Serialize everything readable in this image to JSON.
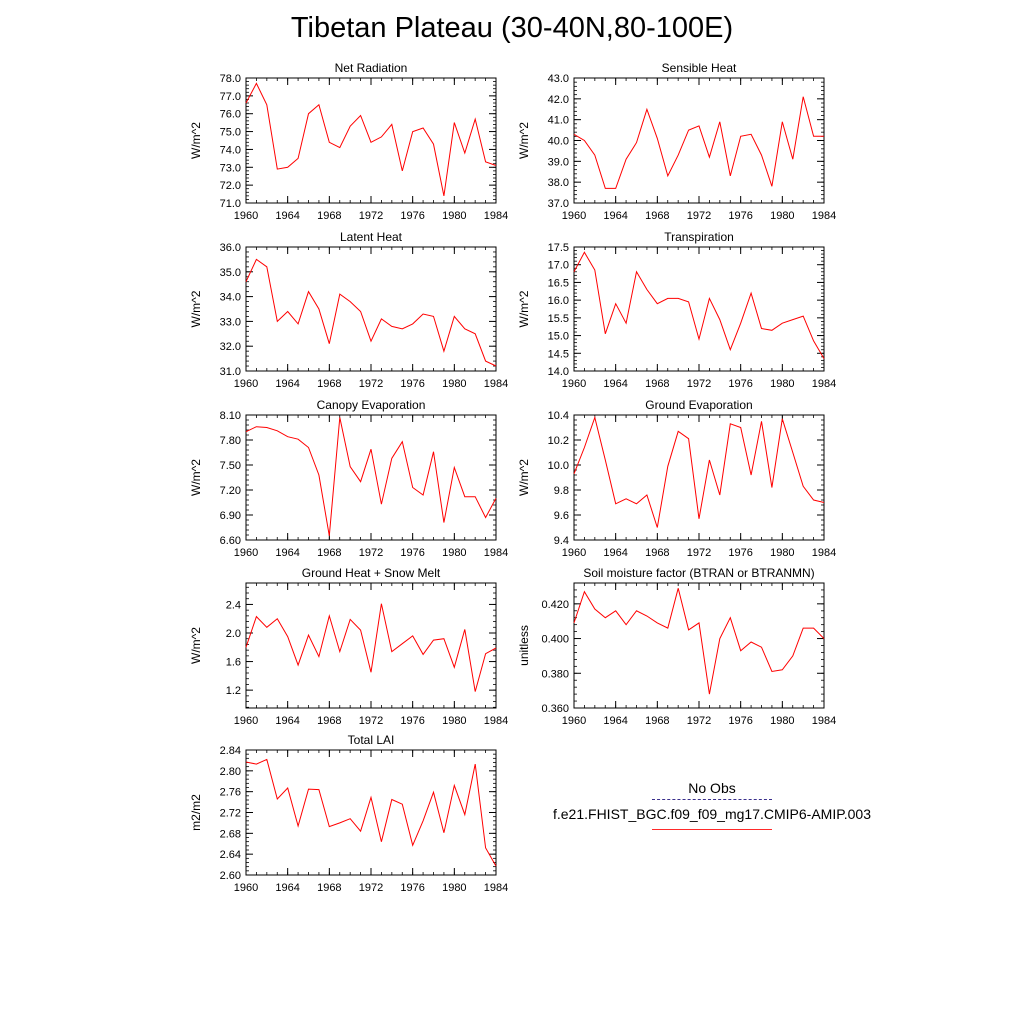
{
  "title": "Tibetan Plateau (30-40N,80-100E)",
  "legend": {
    "obs_label": "No Obs",
    "obs_color": "#3a2e8c",
    "model_label": "f.e21.FHIST_BGC.f09_f09_mg17.CMIP6-AMIP.003",
    "model_color": "#ff0000"
  },
  "chart_data": [
    {
      "type": "line",
      "title": "Net Radiation",
      "ylabel": "W/m^2",
      "xlim": [
        1960,
        1984
      ],
      "ylim": [
        71.0,
        78.0
      ],
      "xticks": [
        1960,
        1964,
        1968,
        1972,
        1976,
        1980,
        1984
      ],
      "yticks": [
        "71.0",
        "72.0",
        "73.0",
        "74.0",
        "75.0",
        "76.0",
        "77.0",
        "78.0"
      ],
      "x": [
        1960,
        1961,
        1962,
        1963,
        1964,
        1965,
        1966,
        1967,
        1968,
        1969,
        1970,
        1971,
        1972,
        1973,
        1974,
        1975,
        1976,
        1977,
        1978,
        1979,
        1980,
        1981,
        1982,
        1983,
        1984
      ],
      "series": [
        {
          "values": [
            76.6,
            77.7,
            76.5,
            72.9,
            73.0,
            73.5,
            76.0,
            76.5,
            74.4,
            74.1,
            75.3,
            75.9,
            74.4,
            74.7,
            75.4,
            72.8,
            75.0,
            75.2,
            74.3,
            71.4,
            75.5,
            73.8,
            75.7,
            73.3,
            73.1
          ]
        }
      ]
    },
    {
      "type": "line",
      "title": "Sensible Heat",
      "ylabel": "W/m^2",
      "xlim": [
        1960,
        1984
      ],
      "ylim": [
        37.0,
        43.0
      ],
      "xticks": [
        1960,
        1964,
        1968,
        1972,
        1976,
        1980,
        1984
      ],
      "yticks": [
        "37.0",
        "38.0",
        "39.0",
        "40.0",
        "41.0",
        "42.0",
        "43.0"
      ],
      "x": [
        1960,
        1961,
        1962,
        1963,
        1964,
        1965,
        1966,
        1967,
        1968,
        1969,
        1970,
        1971,
        1972,
        1973,
        1974,
        1975,
        1976,
        1977,
        1978,
        1979,
        1980,
        1981,
        1982,
        1983,
        1984
      ],
      "series": [
        {
          "values": [
            40.3,
            40.0,
            39.3,
            37.7,
            37.7,
            39.1,
            39.9,
            41.5,
            40.1,
            38.3,
            39.3,
            40.5,
            40.7,
            39.2,
            40.9,
            38.3,
            40.2,
            40.3,
            39.3,
            37.8,
            40.9,
            39.1,
            42.1,
            40.2,
            40.2
          ]
        }
      ]
    },
    {
      "type": "line",
      "title": "Latent Heat",
      "ylabel": "W/m^2",
      "xlim": [
        1960,
        1984
      ],
      "ylim": [
        31.0,
        36.0
      ],
      "xticks": [
        1960,
        1964,
        1968,
        1972,
        1976,
        1980,
        1984
      ],
      "yticks": [
        "31.0",
        "32.0",
        "33.0",
        "34.0",
        "35.0",
        "36.0"
      ],
      "x": [
        1960,
        1961,
        1962,
        1963,
        1964,
        1965,
        1966,
        1967,
        1968,
        1969,
        1970,
        1971,
        1972,
        1973,
        1974,
        1975,
        1976,
        1977,
        1978,
        1979,
        1980,
        1981,
        1982,
        1983,
        1984
      ],
      "series": [
        {
          "values": [
            34.6,
            35.5,
            35.2,
            33.0,
            33.4,
            32.9,
            34.2,
            33.5,
            32.1,
            34.1,
            33.8,
            33.4,
            32.2,
            33.1,
            32.8,
            32.7,
            32.9,
            33.3,
            33.2,
            31.8,
            33.2,
            32.7,
            32.5,
            31.4,
            31.2
          ]
        }
      ]
    },
    {
      "type": "line",
      "title": "Transpiration",
      "ylabel": "W/m^2",
      "xlim": [
        1960,
        1984
      ],
      "ylim": [
        14.0,
        17.5
      ],
      "xticks": [
        1960,
        1964,
        1968,
        1972,
        1976,
        1980,
        1984
      ],
      "yticks": [
        "14.0",
        "14.5",
        "15.0",
        "15.5",
        "16.0",
        "16.5",
        "17.0",
        "17.5"
      ],
      "x": [
        1960,
        1961,
        1962,
        1963,
        1964,
        1965,
        1966,
        1967,
        1968,
        1969,
        1970,
        1971,
        1972,
        1973,
        1974,
        1975,
        1976,
        1977,
        1978,
        1979,
        1980,
        1981,
        1982,
        1983,
        1984
      ],
      "series": [
        {
          "values": [
            16.8,
            17.35,
            16.85,
            15.05,
            15.9,
            15.35,
            16.8,
            16.3,
            15.9,
            16.05,
            16.05,
            15.95,
            14.9,
            16.05,
            15.45,
            14.6,
            15.35,
            16.2,
            15.2,
            15.15,
            15.35,
            15.45,
            15.55,
            14.85,
            14.35
          ]
        }
      ]
    },
    {
      "type": "line",
      "title": "Canopy Evaporation",
      "ylabel": "W/m^2",
      "xlim": [
        1960,
        1984
      ],
      "ylim": [
        6.6,
        8.1
      ],
      "xticks": [
        1960,
        1964,
        1968,
        1972,
        1976,
        1980,
        1984
      ],
      "yticks": [
        "6.60",
        "6.90",
        "7.20",
        "7.50",
        "7.80",
        "8.10"
      ],
      "x": [
        1960,
        1961,
        1962,
        1963,
        1964,
        1965,
        1966,
        1967,
        1968,
        1969,
        1970,
        1971,
        1972,
        1973,
        1974,
        1975,
        1976,
        1977,
        1978,
        1979,
        1980,
        1981,
        1982,
        1983,
        1984
      ],
      "series": [
        {
          "values": [
            7.9,
            7.96,
            7.95,
            7.91,
            7.84,
            7.81,
            7.71,
            7.38,
            6.65,
            8.07,
            7.48,
            7.3,
            7.69,
            7.03,
            7.58,
            7.78,
            7.23,
            7.14,
            7.66,
            6.81,
            7.47,
            7.12,
            7.12,
            6.87,
            7.1
          ]
        }
      ]
    },
    {
      "type": "line",
      "title": "Ground Evaporation",
      "ylabel": "W/m^2",
      "xlim": [
        1960,
        1984
      ],
      "ylim": [
        9.4,
        10.4
      ],
      "xticks": [
        1960,
        1964,
        1968,
        1972,
        1976,
        1980,
        1984
      ],
      "yticks": [
        "9.4",
        "9.6",
        "9.8",
        "10.0",
        "10.2",
        "10.4"
      ],
      "x": [
        1960,
        1961,
        1962,
        1963,
        1964,
        1965,
        1966,
        1967,
        1968,
        1969,
        1970,
        1971,
        1972,
        1973,
        1974,
        1975,
        1976,
        1977,
        1978,
        1979,
        1980,
        1981,
        1982,
        1983,
        1984
      ],
      "series": [
        {
          "values": [
            9.93,
            10.14,
            10.38,
            10.04,
            9.69,
            9.73,
            9.69,
            9.76,
            9.5,
            9.99,
            10.27,
            10.21,
            9.57,
            10.04,
            9.76,
            10.33,
            10.3,
            9.92,
            10.35,
            9.82,
            10.37,
            10.1,
            9.83,
            9.72,
            9.7
          ]
        }
      ]
    },
    {
      "type": "line",
      "title": "Ground Heat + Snow Melt",
      "ylabel": "W/m^2",
      "xlim": [
        1960,
        1984
      ],
      "ylim": [
        0.95,
        2.7
      ],
      "xticks": [
        1960,
        1964,
        1968,
        1972,
        1976,
        1980,
        1984
      ],
      "yticks": [
        "1.2",
        "1.6",
        "2.0",
        "2.4"
      ],
      "x": [
        1960,
        1961,
        1962,
        1963,
        1964,
        1965,
        1966,
        1967,
        1968,
        1969,
        1970,
        1971,
        1972,
        1973,
        1974,
        1975,
        1976,
        1977,
        1978,
        1979,
        1980,
        1981,
        1982,
        1983,
        1984
      ],
      "series": [
        {
          "values": [
            1.8,
            2.23,
            2.08,
            2.2,
            1.95,
            1.55,
            1.97,
            1.67,
            2.24,
            1.74,
            2.19,
            2.04,
            1.45,
            2.41,
            1.74,
            1.85,
            1.96,
            1.7,
            1.9,
            1.92,
            1.52,
            2.05,
            1.18,
            1.71,
            1.79
          ]
        }
      ]
    },
    {
      "type": "line",
      "title": "Soil moisture factor (BTRAN or BTRANMN)",
      "ylabel": "unitless",
      "xlim": [
        1960,
        1984
      ],
      "ylim": [
        0.36,
        0.432
      ],
      "xticks": [
        1960,
        1964,
        1968,
        1972,
        1976,
        1980,
        1984
      ],
      "yticks": [
        "0.360",
        "0.380",
        "0.400",
        "0.420"
      ],
      "x": [
        1960,
        1961,
        1962,
        1963,
        1964,
        1965,
        1966,
        1967,
        1968,
        1969,
        1970,
        1971,
        1972,
        1973,
        1974,
        1975,
        1976,
        1977,
        1978,
        1979,
        1980,
        1981,
        1982,
        1983,
        1984
      ],
      "series": [
        {
          "values": [
            0.409,
            0.427,
            0.417,
            0.412,
            0.416,
            0.408,
            0.416,
            0.413,
            0.409,
            0.406,
            0.429,
            0.405,
            0.409,
            0.368,
            0.4,
            0.412,
            0.393,
            0.398,
            0.395,
            0.381,
            0.382,
            0.39,
            0.406,
            0.406,
            0.4
          ]
        }
      ]
    },
    {
      "type": "line",
      "title": "Total LAI",
      "ylabel": "m2/m2",
      "xlim": [
        1960,
        1984
      ],
      "ylim": [
        2.6,
        2.84
      ],
      "xticks": [
        1960,
        1964,
        1968,
        1972,
        1976,
        1980,
        1984
      ],
      "yticks": [
        "2.60",
        "2.64",
        "2.68",
        "2.72",
        "2.76",
        "2.80",
        "2.84"
      ],
      "x": [
        1960,
        1961,
        1962,
        1963,
        1964,
        1965,
        1966,
        1967,
        1968,
        1969,
        1970,
        1971,
        1972,
        1973,
        1974,
        1975,
        1976,
        1977,
        1978,
        1979,
        1980,
        1981,
        1982,
        1983,
        1984
      ],
      "series": [
        {
          "values": [
            2.817,
            2.813,
            2.822,
            2.746,
            2.767,
            2.694,
            2.765,
            2.764,
            2.693,
            2.7,
            2.708,
            2.684,
            2.749,
            2.664,
            2.745,
            2.736,
            2.657,
            2.704,
            2.759,
            2.681,
            2.772,
            2.716,
            2.813,
            2.652,
            2.617
          ]
        }
      ]
    }
  ]
}
